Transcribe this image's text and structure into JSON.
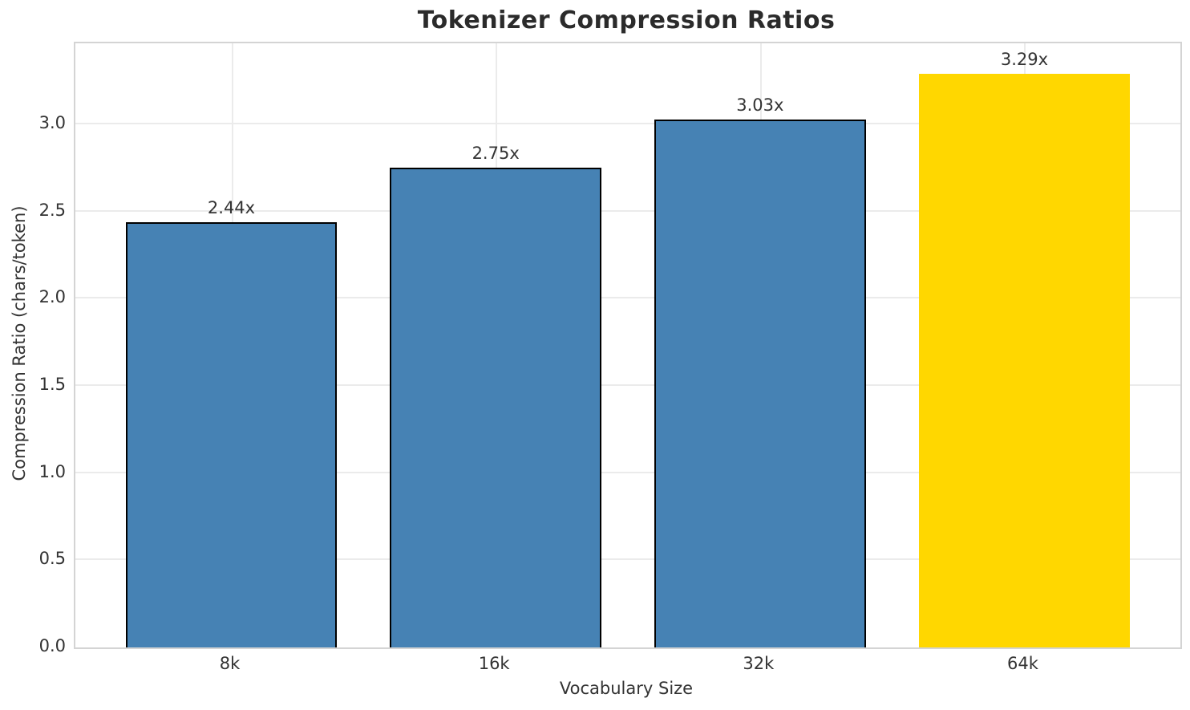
{
  "title": "Tokenizer Compression Ratios",
  "chart_data": {
    "type": "bar",
    "title": "Tokenizer Compression Ratios",
    "xlabel": "Vocabulary Size",
    "ylabel": "Compression Ratio (chars/token)",
    "categories": [
      "8k",
      "16k",
      "32k",
      "64k"
    ],
    "values": [
      2.44,
      2.75,
      3.03,
      3.29
    ],
    "bar_value_labels": [
      "2.44x",
      "2.75x",
      "3.03x",
      "3.29x"
    ],
    "bar_colors": [
      "#4682b4",
      "#4682b4",
      "#4682b4",
      "#ffd700"
    ],
    "bar_edge_colors": [
      "#000000",
      "#000000",
      "#000000",
      "none"
    ],
    "highlight_index": 3,
    "x_positions": [
      0,
      1,
      2,
      3
    ],
    "xlim": [
      -0.59,
      3.59
    ],
    "ylim": [
      0,
      3.465
    ],
    "yticks": [
      0.0,
      0.5,
      1.0,
      1.5,
      2.0,
      2.5,
      3.0
    ],
    "ytick_labels": [
      "0.0",
      "0.5",
      "1.0",
      "1.5",
      "2.0",
      "2.5",
      "3.0"
    ],
    "bar_width_data_units": 0.8,
    "grid": true,
    "grid_color": "#ebebeb",
    "spine_color": "#d4d4d4",
    "legend": "none"
  },
  "colors": {
    "steelblue": "#4682b4",
    "gold": "#ffd700",
    "text": "#333333",
    "title_text": "#2b2b2b"
  }
}
